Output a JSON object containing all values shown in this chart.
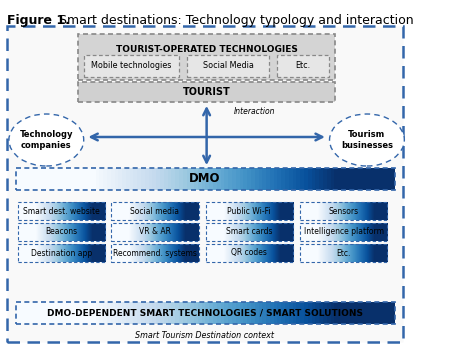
{
  "title_bold": "Figure 1.",
  "title_text": "   Smart destinations: Technology typology and interaction",
  "bg_color": "#ffffff",
  "items": {
    "tourist_operated": "TOURIST-OPERATED TECHNOLOGIES",
    "mobile_tech": "Mobile technologies",
    "social_media_top": "Social Media",
    "etc_top": "Etc.",
    "tourist": "TOURIST",
    "tech_companies": "Technology\ncompanies",
    "tourism_businesses": "Tourism\nbusinesses",
    "interaction_label": "Interaction",
    "dmo": "DMO",
    "dmo_dependent": "DMO-DEPENDENT SMART TECHNOLOGIES / SMART SOLUTIONS",
    "smart_tourism": "Smart Tourism Destination context"
  },
  "grid_items": [
    [
      "Smart dest. website",
      "Social media",
      "Public Wi-Fi",
      "Sensors"
    ],
    [
      "Beacons",
      "VR & AR",
      "Smart cards",
      "Intelligence platform"
    ],
    [
      "Destination app",
      "Recommend. systems",
      "QR codes",
      "Etc."
    ]
  ]
}
